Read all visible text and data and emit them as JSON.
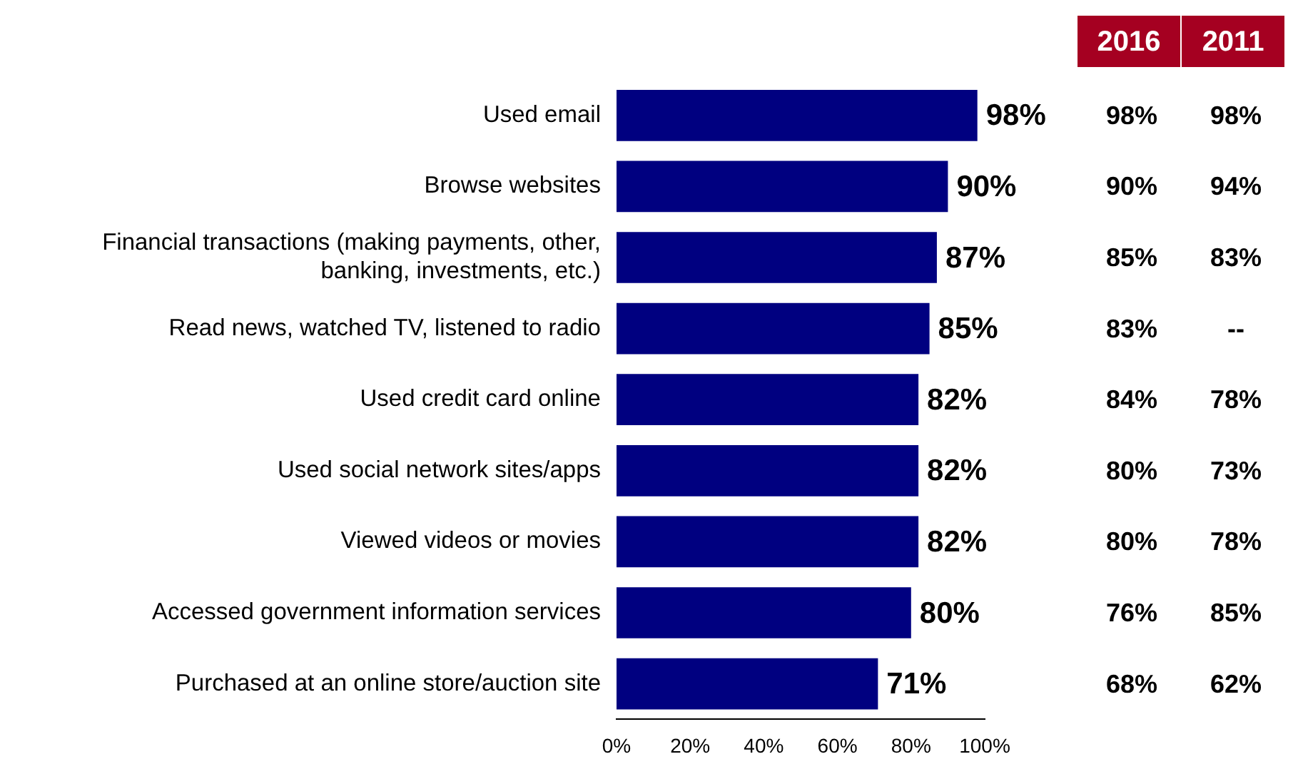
{
  "chart_data": {
    "type": "bar",
    "orientation": "horizontal",
    "categories": [
      "Used email",
      "Browse websites",
      "Financial transactions (making payments, other,\nbanking, investments, etc.)",
      "Read news, watched TV, listened to radio",
      "Used credit card online",
      "Used social network sites/apps",
      "Viewed videos or movies",
      "Accessed government information services",
      "Purchased at an online store/auction site"
    ],
    "values": [
      98,
      90,
      87,
      85,
      82,
      82,
      82,
      80,
      71
    ],
    "value_labels": [
      "98%",
      "90%",
      "87%",
      "85%",
      "82%",
      "82%",
      "82%",
      "80%",
      "71%"
    ],
    "color": "#000080",
    "xlim": [
      0,
      100
    ],
    "xticks": [
      {
        "value": 0,
        "label": "0%"
      },
      {
        "value": 20,
        "label": "20%"
      },
      {
        "value": 40,
        "label": "40%"
      },
      {
        "value": 60,
        "label": "60%"
      },
      {
        "value": 80,
        "label": "80%"
      },
      {
        "value": 100,
        "label": "100%"
      }
    ],
    "grid": false,
    "legend": false,
    "annotations": [
      "2016",
      "2011",
      "98%",
      "98%",
      "90%",
      "94%",
      "85%",
      "83%",
      "83%",
      "--",
      "84%",
      "78%",
      "80%",
      "73%",
      "80%",
      "78%",
      "76%",
      "85%",
      "68%",
      "62%"
    ]
  }
}
